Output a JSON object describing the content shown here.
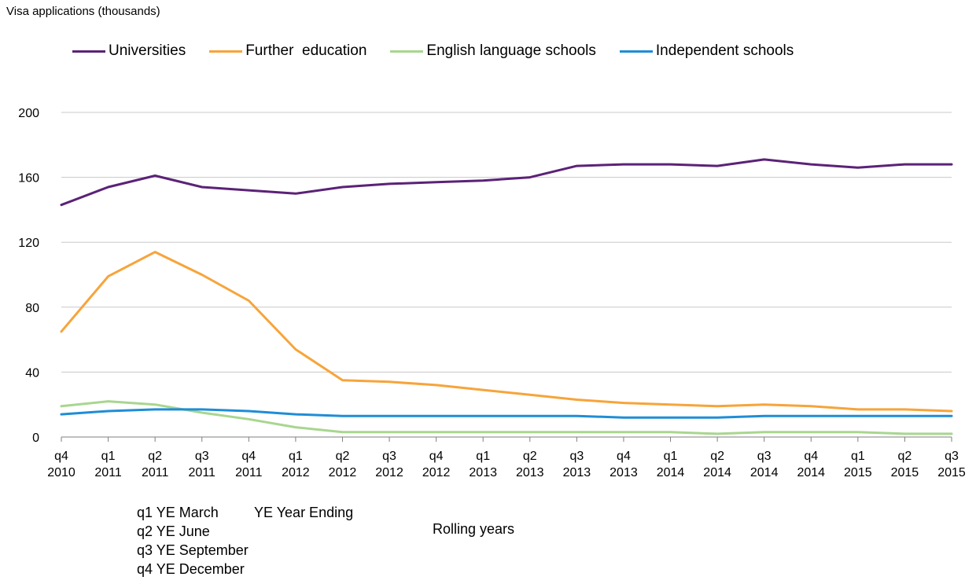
{
  "chart_data": {
    "type": "line",
    "title": "Visa applications (thousands)",
    "xlabel": "Rolling years",
    "ylabel": "",
    "ylim": [
      0,
      200
    ],
    "yticks": [
      0,
      40,
      80,
      120,
      160,
      200
    ],
    "grid": true,
    "legend_position": "top",
    "categories": [
      [
        "q4",
        "2010"
      ],
      [
        "q1",
        "2011"
      ],
      [
        "q2",
        "2011"
      ],
      [
        "q3",
        "2011"
      ],
      [
        "q4",
        "2011"
      ],
      [
        "q1",
        "2012"
      ],
      [
        "q2",
        "2012"
      ],
      [
        "q3",
        "2012"
      ],
      [
        "q4",
        "2012"
      ],
      [
        "q1",
        "2013"
      ],
      [
        "q2",
        "2013"
      ],
      [
        "q3",
        "2013"
      ],
      [
        "q4",
        "2013"
      ],
      [
        "q1",
        "2014"
      ],
      [
        "q2",
        "2014"
      ],
      [
        "q3",
        "2014"
      ],
      [
        "q4",
        "2014"
      ],
      [
        "q1",
        "2015"
      ],
      [
        "q2",
        "2015"
      ],
      [
        "q3",
        "2015"
      ]
    ],
    "series": [
      {
        "name": "Universities",
        "color": "#5b2277",
        "values": [
          143,
          154,
          161,
          154,
          152,
          150,
          154,
          156,
          157,
          158,
          160,
          167,
          168,
          168,
          167,
          171,
          168,
          166,
          168,
          168
        ]
      },
      {
        "name": "Further  education",
        "color": "#f7a43a",
        "values": [
          65,
          99,
          114,
          100,
          84,
          54,
          35,
          34,
          32,
          29,
          26,
          23,
          21,
          20,
          19,
          20,
          19,
          17,
          17,
          16
        ]
      },
      {
        "name": "English language schools",
        "color": "#a8d68f",
        "values": [
          19,
          22,
          20,
          15,
          11,
          6,
          3,
          3,
          3,
          3,
          3,
          3,
          3,
          3,
          2,
          3,
          3,
          3,
          2,
          2
        ]
      },
      {
        "name": "Independent schools",
        "color": "#1f8dd6",
        "values": [
          14,
          16,
          17,
          17,
          16,
          14,
          13,
          13,
          13,
          13,
          13,
          13,
          12,
          12,
          12,
          13,
          13,
          13,
          13,
          13
        ]
      }
    ]
  },
  "notes": {
    "q1": "q1 YE March",
    "q2": "q2 YE June",
    "q3": "q3 YE September",
    "q4": "q4 YE December",
    "ye": "YE Year Ending"
  },
  "style": {
    "grid_color": "#c8c8c8",
    "axis_color": "#7f7f7f"
  }
}
